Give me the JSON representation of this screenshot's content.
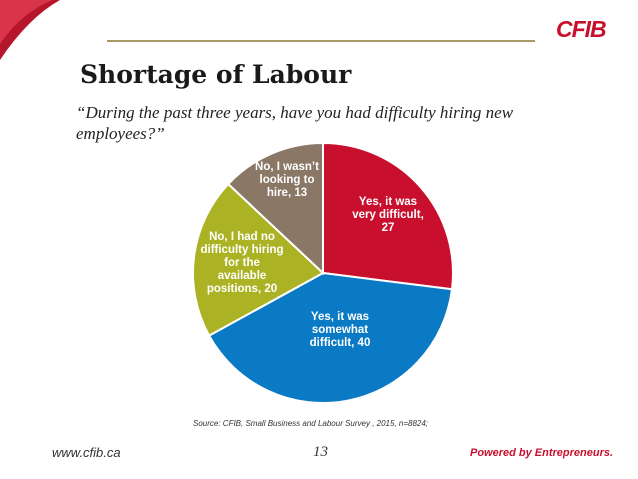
{
  "brand": {
    "logo": "CFIB",
    "accent": "#c8102e",
    "tagline": "Powered by Entrepreneurs."
  },
  "slide": {
    "title": "Shortage of Labour",
    "question": "“During the past three years, have you had difficulty hiring new employees?”",
    "source": "Source: CFIB, Small Business and Labour Survey , 2015, n=8824;",
    "url": "www.cfib.ca",
    "page": "13"
  },
  "chart_data": {
    "type": "pie",
    "title": "",
    "start_angle_deg": 0,
    "direction": "clockwise",
    "slices": [
      {
        "label": [
          "Yes, it was",
          "very difficult,",
          "27"
        ],
        "value": 27,
        "color": "#c8102e"
      },
      {
        "label": [
          "Yes, it was",
          "somewhat",
          "difficult, 40"
        ],
        "value": 40,
        "color": "#0a7ac4"
      },
      {
        "label": [
          "No, I had no",
          "difficulty hiring",
          "for the",
          "available",
          "positions, 20"
        ],
        "value": 20,
        "color": "#abb324"
      },
      {
        "label": [
          "No, I wasn’t",
          "looking to",
          "hire, 13"
        ],
        "value": 13,
        "color": "#8a7766"
      }
    ]
  }
}
